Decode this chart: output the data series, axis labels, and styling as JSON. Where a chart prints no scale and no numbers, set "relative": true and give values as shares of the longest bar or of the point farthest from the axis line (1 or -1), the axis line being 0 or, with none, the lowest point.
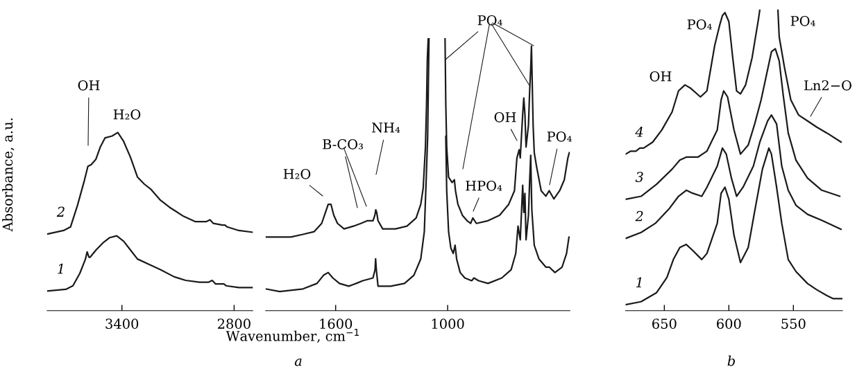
{
  "chart_data": [
    {
      "type": "line",
      "relative": true,
      "xlim": [
        3800,
        2700
      ],
      "xticks": [
        3400,
        2800
      ],
      "tick_labels": "x",
      "xlabel": "Wavenumber, cm$^{−1}$",
      "ylabel": "Absorbance, a.u.",
      "series": [
        {
          "name": "1",
          "color": "#1a1a1a",
          "x": [
            3800,
            3700,
            3662,
            3625,
            3595,
            3586,
            3576,
            3570,
            3539,
            3502,
            3465,
            3428,
            3391,
            3354,
            3317,
            3256,
            3194,
            3120,
            3059,
            2985,
            2936,
            2917,
            2899,
            2855,
            2843,
            2775,
            2700
          ],
          "values": [
            0.11,
            0.12,
            0.14,
            0.21,
            0.29,
            0.33,
            0.3,
            0.3,
            0.34,
            0.38,
            0.41,
            0.42,
            0.39,
            0.34,
            0.29,
            0.26,
            0.23,
            0.19,
            0.17,
            0.16,
            0.16,
            0.17,
            0.15,
            0.15,
            0.14,
            0.13,
            0.13
          ]
        },
        {
          "name": "2",
          "color": "#1a1a1a",
          "x": [
            3800,
            3712,
            3675,
            3638,
            3601,
            3582,
            3564,
            3539,
            3515,
            3490,
            3453,
            3422,
            3391,
            3354,
            3317,
            3280,
            3244,
            3194,
            3145,
            3071,
            3009,
            2948,
            2929,
            2911,
            2862,
            2849,
            2837,
            2775,
            2700
          ],
          "values": [
            0.43,
            0.45,
            0.47,
            0.59,
            0.73,
            0.81,
            0.82,
            0.85,
            0.92,
            0.97,
            0.98,
            1.0,
            0.95,
            0.86,
            0.75,
            0.71,
            0.68,
            0.62,
            0.58,
            0.53,
            0.5,
            0.5,
            0.51,
            0.49,
            0.48,
            0.48,
            0.47,
            0.45,
            0.44
          ]
        }
      ],
      "annotations": [
        "OH",
        "H₂O"
      ]
    },
    {
      "type": "line",
      "relative": true,
      "xlim": [
        1975,
        345
      ],
      "xticks": [
        1600,
        1000
      ],
      "tick_labels": "x",
      "series": [
        {
          "color": "#1a1a1a",
          "x": [
            1975,
            1900,
            1775,
            1700,
            1665,
            1640,
            1615,
            1580,
            1530,
            1490,
            1455,
            1400,
            1389,
            1386,
            1382,
            1373,
            1305,
            1231,
            1181,
            1144,
            1125,
            1113,
            1107,
            1100,
            1050,
            1010,
            1005,
            995,
            983,
            970,
            960,
            952,
            933,
            908,
            871,
            859,
            834,
            784,
            710,
            660,
            635,
            623,
            611,
            598,
            592,
            586,
            580,
            567,
            561,
            555,
            549,
            536,
            511,
            474,
            456,
            425,
            387,
            363,
            350
          ],
          "values": [
            0.08,
            0.07,
            0.08,
            0.1,
            0.13,
            0.14,
            0.12,
            0.1,
            0.09,
            0.1,
            0.11,
            0.12,
            0.15,
            0.19,
            0.15,
            0.09,
            0.09,
            0.1,
            0.13,
            0.19,
            0.29,
            0.52,
            0.64,
            1.0,
            null,
            0.64,
            0.44,
            0.29,
            0.23,
            0.21,
            0.24,
            0.19,
            0.14,
            0.12,
            0.11,
            0.12,
            0.11,
            0.1,
            0.12,
            0.15,
            0.21,
            0.31,
            0.26,
            0.46,
            0.36,
            0.43,
            0.26,
            0.35,
            0.47,
            0.57,
            0.37,
            0.24,
            0.19,
            0.16,
            0.16,
            0.14,
            0.16,
            0.21,
            0.27
          ]
        },
        {
          "color": "#1a1a1a",
          "x": [
            1975,
            1840,
            1775,
            1715,
            1675,
            1650,
            1640,
            1625,
            1610,
            1590,
            1555,
            1505,
            1465,
            1430,
            1400,
            1390,
            1385,
            1380,
            1373,
            1348,
            1280,
            1218,
            1169,
            1144,
            1131,
            1119,
            1113,
            1109,
            1104,
            1050,
            1014,
            1010,
            1005,
            995,
            976,
            964,
            958,
            945,
            921,
            896,
            877,
            865,
            846,
            784,
            722,
            673,
            642,
            629,
            617,
            611,
            598,
            592,
            586,
            580,
            567,
            561,
            555,
            551,
            542,
            536,
            524,
            499,
            474,
            456,
            431,
            400,
            375,
            356,
            348
          ],
          "values": [
            0.27,
            0.27,
            0.28,
            0.29,
            0.32,
            0.37,
            0.39,
            0.39,
            0.35,
            0.32,
            0.3,
            0.31,
            0.32,
            0.33,
            0.33,
            0.35,
            0.37,
            0.36,
            0.33,
            0.3,
            0.3,
            0.31,
            0.34,
            0.39,
            0.45,
            0.6,
            0.76,
            0.92,
            1.0,
            null,
            1.0,
            0.76,
            0.6,
            0.49,
            0.47,
            0.48,
            0.44,
            0.39,
            0.35,
            0.33,
            0.32,
            0.34,
            0.32,
            0.33,
            0.35,
            0.39,
            0.44,
            0.56,
            0.59,
            0.56,
            0.72,
            0.78,
            0.72,
            0.6,
            0.68,
            0.8,
            0.89,
            0.97,
            0.68,
            0.58,
            0.53,
            0.44,
            0.42,
            0.44,
            0.41,
            0.44,
            0.48,
            0.56,
            0.58
          ]
        }
      ],
      "annotations": [
        "H₂O",
        "B-CO₃",
        "NH₄",
        "PO₄",
        "OH",
        "HPO₄",
        "PO₄",
        "a"
      ]
    },
    {
      "type": "line",
      "relative": true,
      "xlim": [
        680,
        512
      ],
      "xticks": [
        650,
        600,
        550
      ],
      "tick_labels": "x",
      "series": [
        {
          "name": "1",
          "color": "#1a1a1a",
          "x": [
            680,
            668,
            656,
            648,
            643,
            638,
            633,
            628,
            621,
            617,
            609,
            606,
            603,
            600,
            596,
            591,
            585,
            580,
            574,
            569,
            567,
            563,
            559,
            554,
            548,
            539,
            532,
            524,
            519,
            512
          ],
          "values": [
            0.02,
            0.03,
            0.06,
            0.11,
            0.17,
            0.21,
            0.22,
            0.2,
            0.17,
            0.19,
            0.29,
            0.39,
            0.41,
            0.37,
            0.25,
            0.16,
            0.21,
            0.33,
            0.47,
            0.54,
            0.52,
            0.41,
            0.29,
            0.17,
            0.13,
            0.09,
            0.07,
            0.05,
            0.04,
            0.04
          ]
        },
        {
          "name": "2",
          "color": "#1a1a1a",
          "x": [
            680,
            668,
            657,
            646,
            639,
            633,
            628,
            621,
            617,
            609,
            605,
            602,
            598,
            594,
            589,
            581,
            576,
            570,
            567,
            563,
            559,
            554,
            548,
            539,
            528,
            513
          ],
          "values": [
            0.24,
            0.26,
            0.29,
            0.34,
            0.38,
            0.4,
            0.39,
            0.38,
            0.41,
            0.48,
            0.54,
            0.52,
            0.44,
            0.38,
            0.41,
            0.48,
            0.56,
            0.63,
            0.65,
            0.62,
            0.48,
            0.4,
            0.35,
            0.32,
            0.3,
            0.27
          ]
        },
        {
          "name": "3",
          "color": "#1a1a1a",
          "x": [
            680,
            668,
            656,
            644,
            638,
            633,
            624,
            617,
            609,
            606,
            604,
            601,
            596,
            591,
            585,
            580,
            575,
            570,
            567,
            564,
            561,
            558,
            554,
            548,
            539,
            528,
            514
          ],
          "values": [
            0.37,
            0.38,
            0.42,
            0.47,
            0.5,
            0.51,
            0.51,
            0.53,
            0.6,
            0.7,
            0.73,
            0.71,
            0.6,
            0.52,
            0.55,
            0.62,
            0.7,
            0.8,
            0.86,
            0.87,
            0.83,
            0.72,
            0.59,
            0.5,
            0.44,
            0.4,
            0.38
          ]
        },
        {
          "name": "4",
          "color": "#1a1a1a",
          "x": [
            680,
            676,
            672,
            669,
            666,
            659,
            652,
            644,
            639,
            634,
            630,
            622,
            617,
            611,
            607,
            605,
            603,
            600,
            597,
            594,
            591,
            587,
            582,
            577,
            576,
            569,
            562,
            561,
            557,
            552,
            546,
            539,
            532,
            524,
            513
          ],
          "values": [
            0.52,
            0.53,
            0.53,
            0.54,
            0.54,
            0.56,
            0.6,
            0.66,
            0.73,
            0.75,
            0.74,
            0.71,
            0.73,
            0.88,
            0.95,
            0.98,
            0.99,
            0.96,
            0.84,
            0.73,
            0.72,
            0.75,
            0.84,
            0.97,
            1.0,
            null,
            1.0,
            0.91,
            0.81,
            0.7,
            0.65,
            0.63,
            0.61,
            0.59,
            0.56
          ]
        }
      ],
      "annotations": [
        "OH",
        "PO₄",
        "PO₄",
        "Ln2−O",
        "b"
      ]
    }
  ]
}
